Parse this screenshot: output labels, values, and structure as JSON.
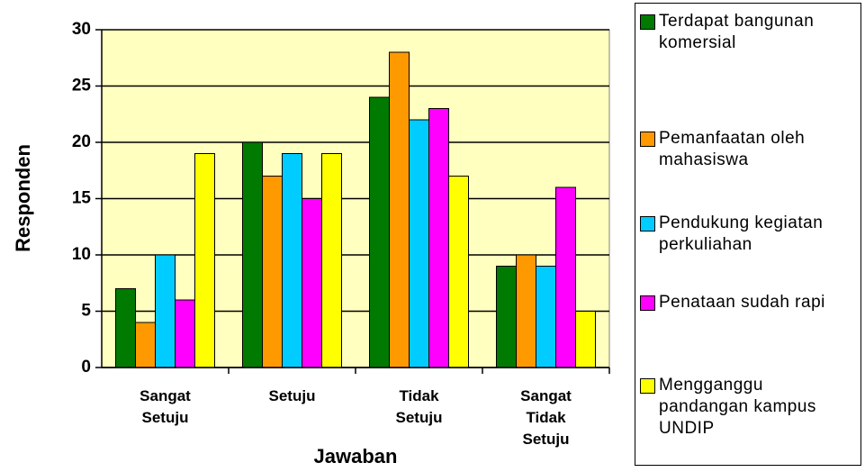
{
  "chart_data": {
    "type": "bar",
    "x_label": "Jawaban",
    "y_label": "Responden",
    "categories": [
      "Sangat Setuju",
      "Setuju",
      "Tidak Setuju",
      "Sangat Tidak Setuju"
    ],
    "series": [
      {
        "name": "Terdapat bangunan komersial",
        "color": "#007a00",
        "values": [
          7,
          20,
          24,
          9
        ]
      },
      {
        "name": "Pemanfaatan oleh mahasiswa",
        "color": "#ff9900",
        "values": [
          4,
          17,
          28,
          10
        ]
      },
      {
        "name": "Pendukung kegiatan perkuliahan",
        "color": "#00ccff",
        "values": [
          10,
          19,
          22,
          9
        ]
      },
      {
        "name": "Penataan sudah rapi",
        "color": "#ff00ff",
        "values": [
          6,
          15,
          23,
          16
        ]
      },
      {
        "name": "Mengganggu pandangan kampus UNDIP",
        "color": "#ffff00",
        "values": [
          19,
          19,
          17,
          5
        ]
      }
    ],
    "ylim": [
      0,
      30
    ],
    "yticks": [
      0,
      5,
      10,
      15,
      20,
      25,
      30
    ],
    "grid": true,
    "legend": "right",
    "plot_background": "#ffffc0"
  }
}
